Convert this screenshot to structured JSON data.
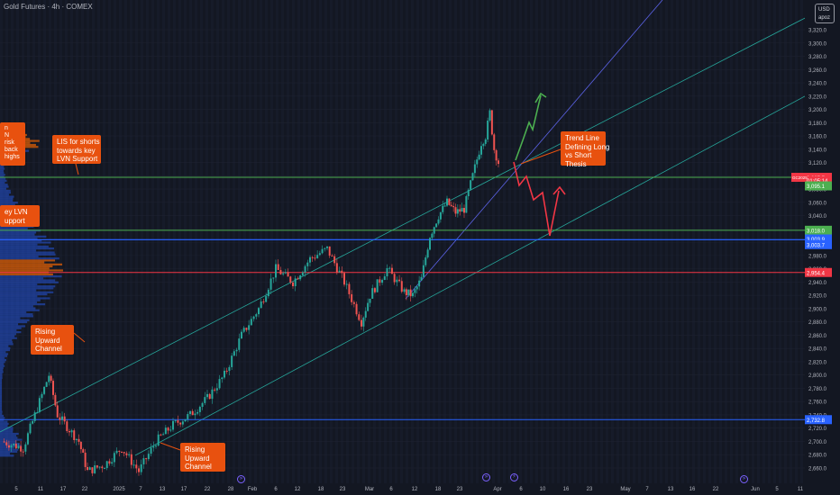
{
  "header": {
    "title": "Gold Futures · 4h · COMEX"
  },
  "price_scale": {
    "currency": "USD",
    "mode": "apoz"
  },
  "colors": {
    "background": "#131722",
    "grid": "#1e2230",
    "up": "#26a69a",
    "down": "#ef5350",
    "channel": "#26a69a",
    "trend": "#5b62e6",
    "green_line": "#4caf50",
    "red_line": "#f23645",
    "blue_line": "#2962ff",
    "profile": "#2962ff",
    "profile_hi": "#ff6a00",
    "note": "#e8510f",
    "arrow_up": "#4caf50",
    "arrow_down": "#f23645"
  },
  "notes": {
    "n1": "n\nN\nrisk\nback\nhighs",
    "n2": "LIS for shorts\ntowards key\nLVN Support",
    "n3": "ey LVN\nupport",
    "n4": "Rising\nUpward\nChannel",
    "n5": "Trend Line\nDefining Long\nvs Short\nThesis",
    "n6": "Rising\nUpward\nChannel"
  },
  "event_icons": [
    "event-marker",
    "event-marker",
    "event-marker",
    "event-marker"
  ],
  "chart_data": {
    "type": "candlestick",
    "symbol": "GC2025",
    "title": "Gold Futures · 4h · COMEX",
    "ylim": [
      2644,
      3340
    ],
    "y_ticks": [
      3320,
      3300,
      3280,
      3260,
      3240,
      3220,
      3200,
      3180,
      3160,
      3140,
      3120,
      3100,
      3080,
      3060,
      3040,
      3020,
      3000,
      2980,
      2960,
      2940,
      2920,
      2900,
      2880,
      2860,
      2840,
      2820,
      2800,
      2780,
      2760,
      2740,
      2720,
      2700,
      2680,
      2660
    ],
    "x_ticks": [
      "5",
      "11",
      "17",
      "22",
      "2025",
      "7",
      "13",
      "17",
      "22",
      "28",
      "Feb",
      "6",
      "12",
      "18",
      "23",
      "Mar",
      "6",
      "12",
      "18",
      "23",
      "Apr",
      "6",
      "10",
      "16",
      "23",
      "May",
      "7",
      "13",
      "16",
      "22",
      "Jun",
      "5",
      "11"
    ],
    "anchors": [
      {
        "d": 0,
        "p": 2700
      },
      {
        "d": 5,
        "p": 2690
      },
      {
        "d": 11,
        "p": 2800
      },
      {
        "d": 13,
        "p": 2740
      },
      {
        "d": 18,
        "p": 2700
      },
      {
        "d": 20,
        "p": 2655
      },
      {
        "d": 24,
        "p": 2665
      },
      {
        "d": 28,
        "p": 2690
      },
      {
        "d": 32,
        "p": 2655
      },
      {
        "d": 36,
        "p": 2700
      },
      {
        "d": 40,
        "p": 2725
      },
      {
        "d": 44,
        "p": 2740
      },
      {
        "d": 48,
        "p": 2765
      },
      {
        "d": 52,
        "p": 2800
      },
      {
        "d": 56,
        "p": 2860
      },
      {
        "d": 60,
        "p": 2900
      },
      {
        "d": 64,
        "p": 2960
      },
      {
        "d": 68,
        "p": 2940
      },
      {
        "d": 72,
        "p": 2975
      },
      {
        "d": 76,
        "p": 2990
      },
      {
        "d": 80,
        "p": 2940
      },
      {
        "d": 84,
        "p": 2880
      },
      {
        "d": 86,
        "p": 2920
      },
      {
        "d": 90,
        "p": 2960
      },
      {
        "d": 94,
        "p": 2925
      },
      {
        "d": 96,
        "p": 2920
      },
      {
        "d": 98,
        "p": 2945
      },
      {
        "d": 100,
        "p": 3010
      },
      {
        "d": 102,
        "p": 3040
      },
      {
        "d": 104,
        "p": 3060
      },
      {
        "d": 106,
        "p": 3045
      },
      {
        "d": 108,
        "p": 3050
      },
      {
        "d": 110,
        "p": 3100
      },
      {
        "d": 112,
        "p": 3150
      },
      {
        "d": 113,
        "p": 3160
      },
      {
        "d": 114,
        "p": 3195
      },
      {
        "d": 115,
        "p": 3140
      },
      {
        "d": 116,
        "p": 3120
      }
    ],
    "levels": [
      {
        "name": "GC2025",
        "price": 3097.7
      },
      {
        "price": 3095.1,
        "label": "3,095.1"
      },
      {
        "price": 3018.0,
        "label": "3,018.0"
      },
      {
        "price": 3003.9,
        "label": "3,003.9"
      },
      {
        "price": 3003.7,
        "label": "3,003.7"
      },
      {
        "price": 2954.4,
        "label": "2,954.4"
      },
      {
        "price": 2732.8,
        "label": "2,732.8"
      }
    ],
    "price_labels": {
      "current": "3,097.7",
      "countdown": "01:05:14",
      "l1": "3,095.1",
      "l2": "3,018.0",
      "l3": "3,003.9",
      "l4": "3,003.7",
      "l5": "2,954.4",
      "l6": "2,732.8"
    }
  }
}
